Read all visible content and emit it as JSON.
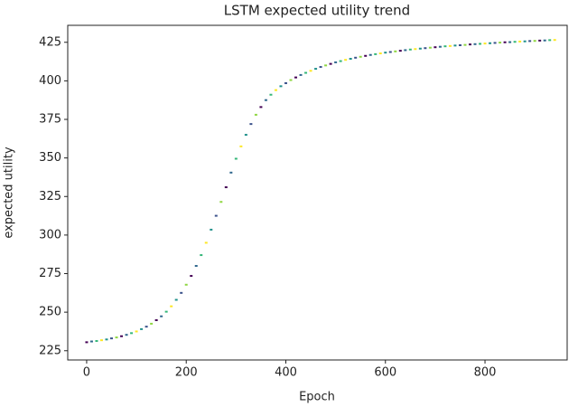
{
  "chart_data": {
    "type": "scatter",
    "title": "LSTM expected utility trend",
    "x_label": "Epoch",
    "y_label": "expected utility",
    "x": [
      0,
      10,
      20,
      30,
      40,
      50,
      60,
      70,
      80,
      90,
      100,
      110,
      120,
      130,
      140,
      150,
      160,
      170,
      180,
      190,
      200,
      210,
      220,
      230,
      240,
      250,
      260,
      270,
      280,
      290,
      300,
      310,
      320,
      330,
      340,
      350,
      360,
      370,
      380,
      390,
      400,
      410,
      420,
      430,
      440,
      450,
      460,
      470,
      480,
      490,
      500,
      510,
      520,
      530,
      540,
      550,
      560,
      570,
      580,
      590,
      600,
      610,
      620,
      630,
      640,
      650,
      660,
      670,
      680,
      690,
      700,
      710,
      720,
      730,
      740,
      750,
      760,
      770,
      780,
      790,
      800,
      810,
      820,
      830,
      840,
      850,
      860,
      870,
      880,
      890,
      900,
      910,
      920,
      930,
      940
    ],
    "values": [
      230.5,
      231,
      231.3,
      231.8,
      232.3,
      233,
      233.6,
      234.4,
      235.3,
      236.4,
      237.5,
      239,
      240.6,
      242.5,
      244.8,
      247.3,
      250.3,
      253.8,
      258,
      262.5,
      267.8,
      273.5,
      280,
      287,
      295,
      303.5,
      312.5,
      321.5,
      331,
      340.5,
      349.5,
      357.5,
      365,
      372,
      378,
      383,
      387.5,
      391,
      394,
      396.5,
      398.5,
      400.5,
      402.2,
      403.8,
      405.2,
      406.5,
      407.8,
      409,
      410,
      411,
      412,
      412.8,
      413.6,
      414.3,
      415,
      415.6,
      416.2,
      416.8,
      417.3,
      417.8,
      418.3,
      418.7,
      419.1,
      419.5,
      419.9,
      420.3,
      420.6,
      420.9,
      421.2,
      421.5,
      421.8,
      422.1,
      422.4,
      422.6,
      422.9,
      423.1,
      423.3,
      423.6,
      423.8,
      424,
      424.2,
      424.4,
      424.6,
      424.8,
      425,
      425.1,
      425.3,
      425.5,
      425.6,
      425.8,
      425.9,
      426.1,
      426.2,
      426.4,
      426.5
    ],
    "palette": [
      "#440154",
      "#31688e",
      "#35b779",
      "#fde725",
      "#21918c",
      "#3b528b",
      "#90d743"
    ],
    "xlim": [
      -38,
      965
    ],
    "ylim": [
      219,
      436
    ],
    "xticks": [
      0,
      200,
      400,
      600,
      800
    ],
    "yticks": [
      225,
      250,
      275,
      300,
      325,
      350,
      375,
      400,
      425
    ]
  }
}
